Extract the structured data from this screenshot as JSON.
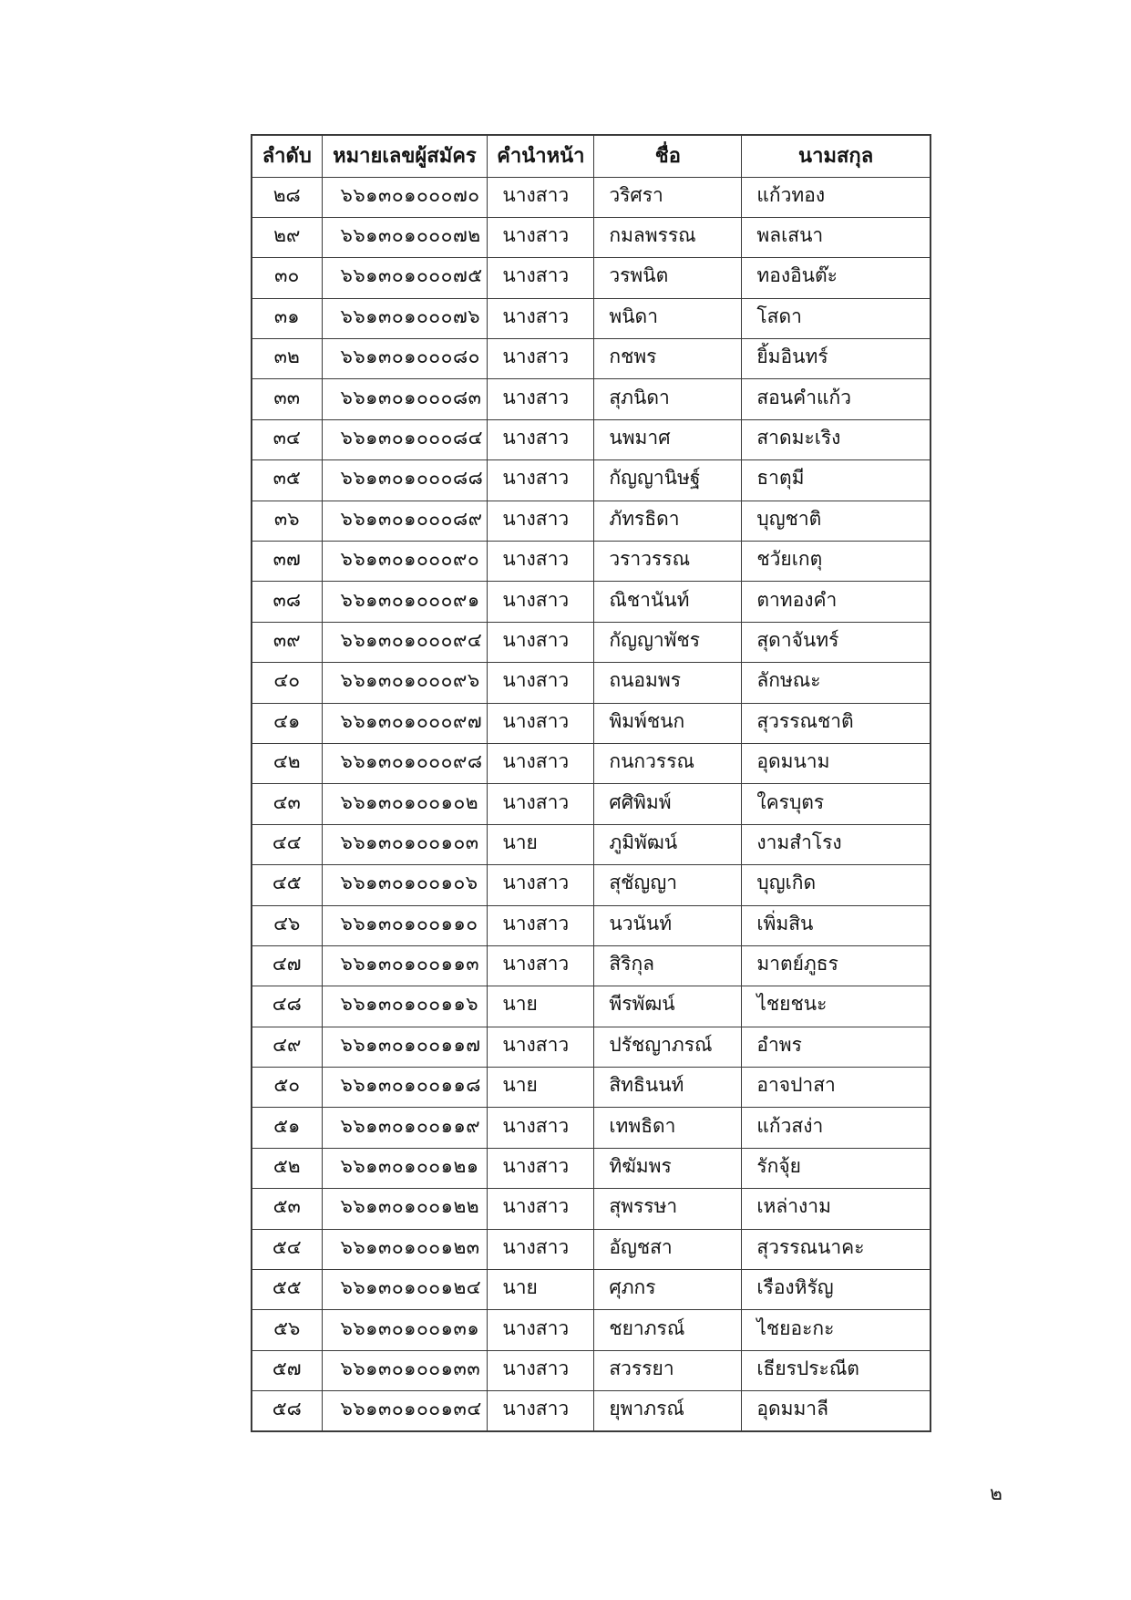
{
  "page": {
    "number": "๒"
  },
  "table": {
    "headers": [
      "ลำดับ",
      "หมายเลขผู้สมัคร",
      "คำนำหน้า",
      "ชื่อ",
      "นามสกุล"
    ],
    "rows": [
      [
        "๒๘",
        "๖๖๑๓๐๑๐๐๐๗๐",
        "นางสาว",
        "วริศรา",
        "แก้วทอง"
      ],
      [
        "๒๙",
        "๖๖๑๓๐๑๐๐๐๗๒",
        "นางสาว",
        "กมลพรรณ",
        "พลเสนา"
      ],
      [
        "๓๐",
        "๖๖๑๓๐๑๐๐๐๗๕",
        "นางสาว",
        "วรพนิต",
        "ทองอินต๊ะ"
      ],
      [
        "๓๑",
        "๖๖๑๓๐๑๐๐๐๗๖",
        "นางสาว",
        "พนิดา",
        "โสดา"
      ],
      [
        "๓๒",
        "๖๖๑๓๐๑๐๐๐๘๐",
        "นางสาว",
        "กชพร",
        "ยิ้มอินทร์"
      ],
      [
        "๓๓",
        "๖๖๑๓๐๑๐๐๐๘๓",
        "นางสาว",
        "สุภนิดา",
        "สอนคำแก้ว"
      ],
      [
        "๓๔",
        "๖๖๑๓๐๑๐๐๐๘๔",
        "นางสาว",
        "นพมาศ",
        "สาดมะเริง"
      ],
      [
        "๓๕",
        "๖๖๑๓๐๑๐๐๐๘๘",
        "นางสาว",
        "กัญญานิษฐ์",
        "ธาตุมี"
      ],
      [
        "๓๖",
        "๖๖๑๓๐๑๐๐๐๘๙",
        "นางสาว",
        "ภัทรธิดา",
        "บุญชาติ"
      ],
      [
        "๓๗",
        "๖๖๑๓๐๑๐๐๐๙๐",
        "นางสาว",
        "วราวรรณ",
        "ชวัยเกตุ"
      ],
      [
        "๓๘",
        "๖๖๑๓๐๑๐๐๐๙๑",
        "นางสาว",
        "ณิชานันท์",
        "ตาทองคำ"
      ],
      [
        "๓๙",
        "๖๖๑๓๐๑๐๐๐๙๔",
        "นางสาว",
        "กัญญาพัชร",
        "สุดาจันทร์"
      ],
      [
        "๔๐",
        "๖๖๑๓๐๑๐๐๐๙๖",
        "นางสาว",
        "ถนอมพร",
        "ลักษณะ"
      ],
      [
        "๔๑",
        "๖๖๑๓๐๑๐๐๐๙๗",
        "นางสาว",
        "พิมพ์ชนก",
        "สุวรรณชาติ"
      ],
      [
        "๔๒",
        "๖๖๑๓๐๑๐๐๐๙๘",
        "นางสาว",
        "กนกวรรณ",
        "อุดมนาม"
      ],
      [
        "๔๓",
        "๖๖๑๓๐๑๐๐๑๐๒",
        "นางสาว",
        "ศศิพิมพ์",
        "ใครบุตร"
      ],
      [
        "๔๔",
        "๖๖๑๓๐๑๐๐๑๐๓",
        "นาย",
        "ภูมิพัฒน์",
        "งามสำโรง"
      ],
      [
        "๔๕",
        "๖๖๑๓๐๑๐๐๑๐๖",
        "นางสาว",
        "สุชัญญา",
        "บุญเกิด"
      ],
      [
        "๔๖",
        "๖๖๑๓๐๑๐๐๑๑๐",
        "นางสาว",
        "นวนันท์",
        "เพิ่มสิน"
      ],
      [
        "๔๗",
        "๖๖๑๓๐๑๐๐๑๑๓",
        "นางสาว",
        "สิริกุล",
        "มาตย์ภูธร"
      ],
      [
        "๔๘",
        "๖๖๑๓๐๑๐๐๑๑๖",
        "นาย",
        "พีรพัฒน์",
        "ไชยชนะ"
      ],
      [
        "๔๙",
        "๖๖๑๓๐๑๐๐๑๑๗",
        "นางสาว",
        "ปรัชญาภรณ์",
        "อำพร"
      ],
      [
        "๕๐",
        "๖๖๑๓๐๑๐๐๑๑๘",
        "นาย",
        "สิทธินนท์",
        "อาจปาสา"
      ],
      [
        "๕๑",
        "๖๖๑๓๐๑๐๐๑๑๙",
        "นางสาว",
        "เทพธิดา",
        "แก้วสง่า"
      ],
      [
        "๕๒",
        "๖๖๑๓๐๑๐๐๑๒๑",
        "นางสาว",
        "ทิฆัมพร",
        "รักจุ้ย"
      ],
      [
        "๕๓",
        "๖๖๑๓๐๑๐๐๑๒๒",
        "นางสาว",
        "สุพรรษา",
        "เหล่างาม"
      ],
      [
        "๕๔",
        "๖๖๑๓๐๑๐๐๑๒๓",
        "นางสาว",
        "อัญชสา",
        "สุวรรณนาคะ"
      ],
      [
        "๕๕",
        "๖๖๑๓๐๑๐๐๑๒๔",
        "นาย",
        "ศุภกร",
        "เรืองหิรัญ"
      ],
      [
        "๕๖",
        "๖๖๑๓๐๑๐๐๑๓๑",
        "นางสาว",
        "ชยาภรณ์",
        "ไชยอะกะ"
      ],
      [
        "๕๗",
        "๖๖๑๓๐๑๐๐๑๓๓",
        "นางสาว",
        "สวรรยา",
        "เธียรประณีต"
      ],
      [
        "๕๘",
        "๖๖๑๓๐๑๐๐๑๓๔",
        "นางสาว",
        "ยุพาภรณ์",
        "อุดมมาลี"
      ]
    ]
  }
}
